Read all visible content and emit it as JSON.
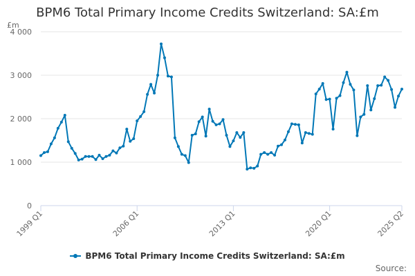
{
  "colors": {
    "series": "#0077b6",
    "grid": "#e6e6e6",
    "axis": "#ccd6eb"
  },
  "source_label": "Source:",
  "chart_data": {
    "type": "line",
    "title": "BPM6 Total Primary Income Credits Switzerland: SA:£m",
    "ylabel": "£m",
    "xlabel": "",
    "ylim": [
      0,
      4000
    ],
    "yticks": [
      {
        "value": 0,
        "label": "0"
      },
      {
        "value": 1000,
        "label": "1 000"
      },
      {
        "value": 2000,
        "label": "2 000"
      },
      {
        "value": 3000,
        "label": "3 000"
      },
      {
        "value": 4000,
        "label": "4 000"
      }
    ],
    "xticks": [
      {
        "index": 0,
        "label": "1999 Q1"
      },
      {
        "index": 28,
        "label": "2006 Q1"
      },
      {
        "index": 56,
        "label": "2013 Q1"
      },
      {
        "index": 84,
        "label": "2020 Q1"
      },
      {
        "index": 105,
        "label": "2025 Q2"
      }
    ],
    "grid": true,
    "legend": "bottom-center",
    "series": [
      {
        "name": "BPM6 Total Primary Income Credits Switzerland: SA:£m",
        "values": [
          1150,
          1220,
          1240,
          1420,
          1560,
          1780,
          1920,
          2080,
          1470,
          1320,
          1200,
          1050,
          1070,
          1130,
          1130,
          1130,
          1060,
          1160,
          1080,
          1130,
          1160,
          1260,
          1210,
          1330,
          1370,
          1760,
          1480,
          1540,
          1950,
          2050,
          2160,
          2560,
          2790,
          2590,
          3000,
          3720,
          3400,
          2980,
          2960,
          1560,
          1360,
          1180,
          1150,
          990,
          1620,
          1650,
          1930,
          2040,
          1600,
          2220,
          1940,
          1860,
          1880,
          1980,
          1620,
          1360,
          1490,
          1680,
          1570,
          1680,
          840,
          870,
          860,
          910,
          1180,
          1220,
          1180,
          1220,
          1160,
          1370,
          1400,
          1510,
          1700,
          1880,
          1870,
          1860,
          1440,
          1680,
          1660,
          1640,
          2570,
          2680,
          2810,
          2440,
          2450,
          1760,
          2470,
          2530,
          2830,
          3070,
          2790,
          2660,
          1610,
          2040,
          2100,
          2760,
          2200,
          2460,
          2760,
          2770,
          2960,
          2880,
          2670,
          2260,
          2520,
          2680
        ]
      }
    ]
  }
}
